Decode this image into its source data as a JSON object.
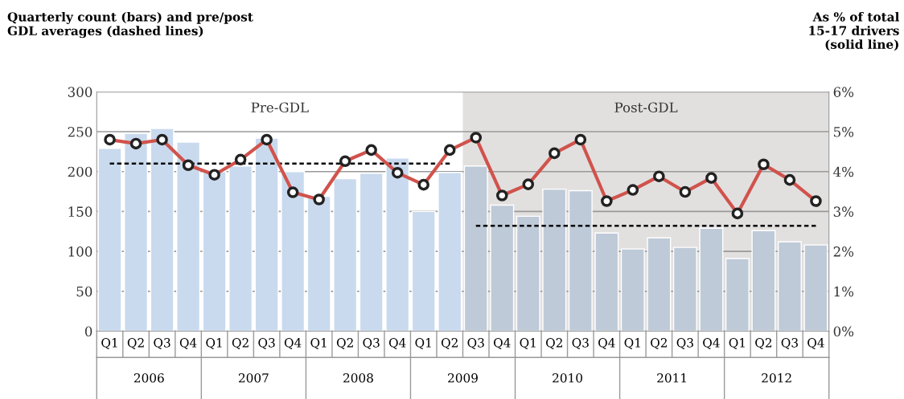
{
  "chart_data": {
    "type": "bar",
    "title": "Quarterly count (bars) and pre/post\nGDL averages (dashed lines)",
    "y2label": "As % of total\n15-17 drivers\n(solid line)",
    "categories": [
      "Q1",
      "Q2",
      "Q3",
      "Q4",
      "Q1",
      "Q2",
      "Q3",
      "Q4",
      "Q1",
      "Q2",
      "Q3",
      "Q4",
      "Q1",
      "Q2",
      "Q3",
      "Q4",
      "Q1",
      "Q2",
      "Q3",
      "Q4",
      "Q1",
      "Q2",
      "Q3",
      "Q4",
      "Q1",
      "Q2",
      "Q3",
      "Q4"
    ],
    "annotations": [
      "2006",
      "2007",
      "2008",
      "2009",
      "2010",
      "2011",
      "2012",
      "Pre-GDL",
      "Post-GDL"
    ],
    "values": [
      229,
      248,
      254,
      237,
      200,
      207,
      242,
      200,
      169,
      191,
      198,
      217,
      150,
      199,
      207,
      158,
      144,
      178,
      176,
      123,
      103,
      117,
      105,
      129,
      91,
      126,
      112,
      108
    ],
    "colors": [
      "#c9daee",
      "#c9daee",
      "#c9daee",
      "#c9daee",
      "#c9daee",
      "#c9daee",
      "#c9daee",
      "#c9daee",
      "#c9daee",
      "#c9daee",
      "#c9daee",
      "#c9daee",
      "#c9daee",
      "#c9daee",
      "#bfcad8",
      "#bfcad8",
      "#bfcad8",
      "#bfcad8",
      "#bfcad8",
      "#bfcad8",
      "#bfcad8",
      "#bfcad8",
      "#bfcad8",
      "#bfcad8",
      "#bfcad8",
      "#bfcad8",
      "#bfcad8",
      "#bfcad8"
    ],
    "series": [
      {
        "type": "line",
        "axis": "y2",
        "color": "#d0534c",
        "marker": "circle",
        "line_style": "solid",
        "values": [
          4.8,
          4.7,
          4.8,
          4.16,
          3.92,
          4.3,
          4.8,
          3.48,
          3.3,
          4.26,
          4.54,
          3.97,
          3.67,
          4.54,
          4.85,
          3.4,
          3.68,
          4.46,
          4.8,
          3.26,
          3.54,
          3.88,
          3.49,
          3.84,
          2.95,
          4.18,
          3.79,
          3.26
        ]
      },
      {
        "type": "line",
        "color": "#000000",
        "marker": "none",
        "line_style": "dashed",
        "values": [
          210,
          210,
          210,
          210,
          210,
          210,
          210,
          210,
          210,
          210,
          210,
          210,
          210,
          210,
          null,
          null,
          null,
          null,
          null,
          null,
          null,
          null,
          null,
          null,
          null,
          null,
          null,
          null
        ]
      },
      {
        "type": "line",
        "color": "#000000",
        "marker": "none",
        "line_style": "dashed",
        "values": [
          null,
          null,
          null,
          null,
          null,
          null,
          null,
          null,
          null,
          null,
          null,
          null,
          null,
          null,
          132,
          132,
          132,
          132,
          132,
          132,
          132,
          132,
          132,
          132,
          132,
          132,
          132,
          132
        ]
      }
    ],
    "ylim": [
      0,
      300
    ],
    "yticks": [
      0,
      50,
      100,
      150,
      200,
      250,
      300
    ],
    "y2lim": [
      0,
      6
    ],
    "y2ticks": [
      {
        "value": 0,
        "label": "0%"
      },
      {
        "value": 1,
        "label": "1%"
      },
      {
        "value": 2,
        "label": "2%"
      },
      {
        "value": 3,
        "label": "3%"
      },
      {
        "value": 4,
        "label": "4%"
      },
      {
        "value": 5,
        "label": "5%"
      },
      {
        "value": 6,
        "label": "6%"
      }
    ],
    "grid": "y",
    "legend": false
  }
}
